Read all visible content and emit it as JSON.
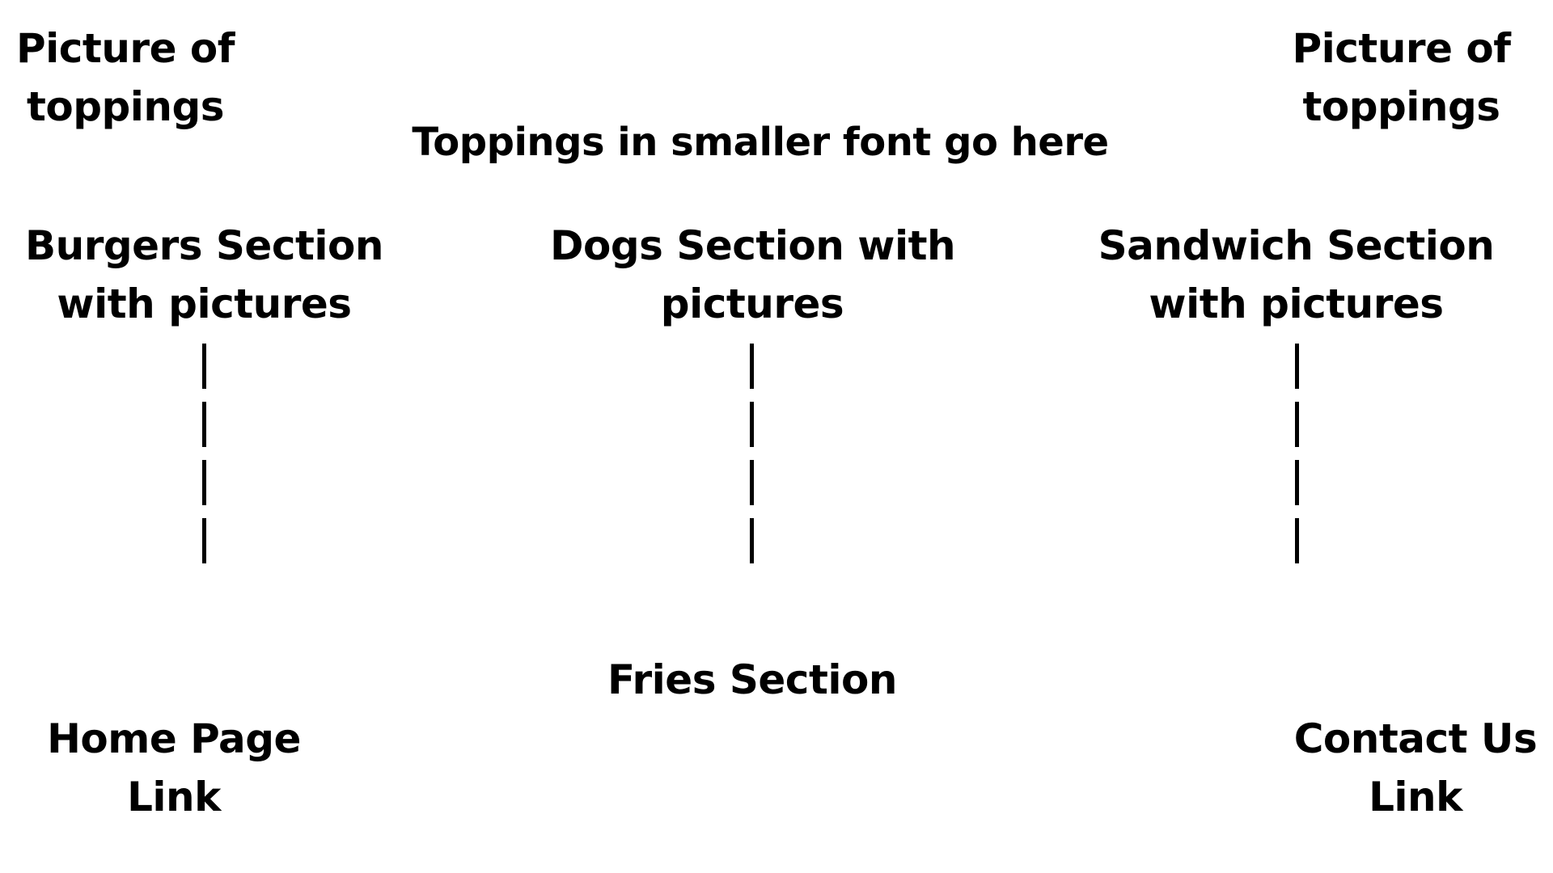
{
  "top_left_picture": {
    "line1": "Picture of",
    "line2": "toppings"
  },
  "top_right_picture": {
    "line1": "Picture of",
    "line2": "toppings"
  },
  "toppings_note": "Toppings in smaller font go here",
  "sections": {
    "burgers": {
      "line1": "Burgers Section",
      "line2": "with pictures"
    },
    "dogs": {
      "line1": "Dogs Section with",
      "line2": "pictures"
    },
    "sandwich": {
      "line1": "Sandwich Section",
      "line2": "with pictures"
    }
  },
  "fries": "Fries Section",
  "links": {
    "home": {
      "line1": "Home Page",
      "line2": "Link"
    },
    "contact": {
      "line1": "Contact Us",
      "line2": "Link"
    }
  }
}
